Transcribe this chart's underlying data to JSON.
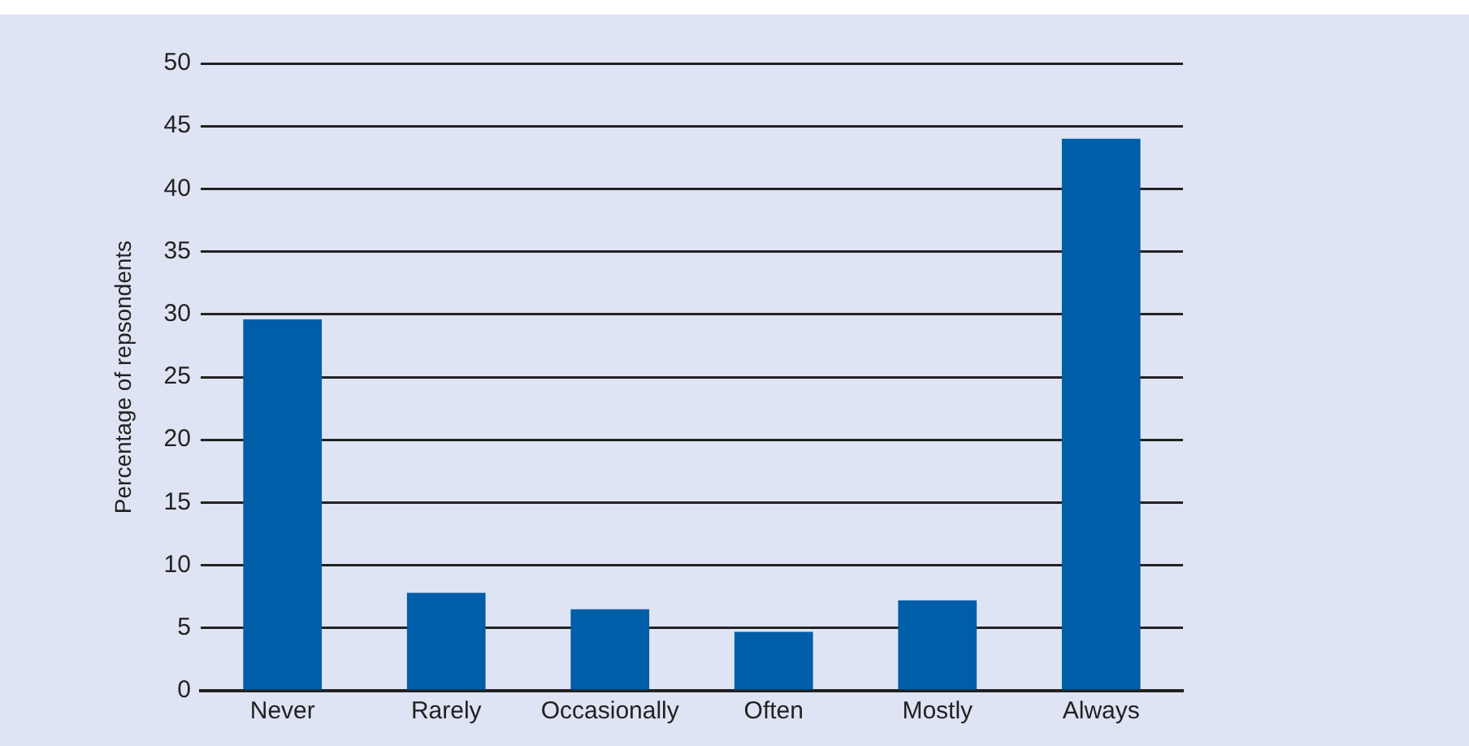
{
  "chart_data": {
    "type": "bar",
    "ylabel": "Percentage of repsondents",
    "categories": [
      "Never",
      "Rarely",
      "Occasionally",
      "Often",
      "Mostly",
      "Always"
    ],
    "values": [
      29.6,
      7.8,
      6.5,
      4.7,
      7.2,
      44.0
    ],
    "color": "#005ea8",
    "ylim": [
      0,
      50
    ],
    "yticks": [
      0,
      5,
      10,
      15,
      20,
      25,
      30,
      35,
      40,
      45,
      50
    ],
    "grid": "y",
    "legend": false
  }
}
